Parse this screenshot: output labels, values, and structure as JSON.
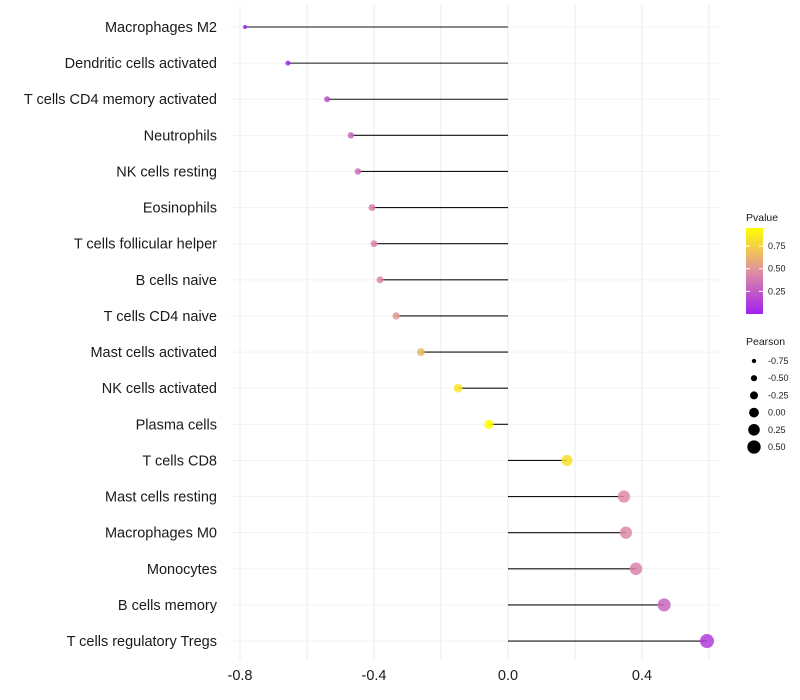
{
  "chart_data": {
    "type": "lollipop",
    "title": "",
    "xlabel": "",
    "ylabel": "",
    "xlim": [
      -0.82,
      0.62
    ],
    "x_ticks": [
      "-0.8",
      "-0.4",
      "0.0",
      "0.4"
    ],
    "x_tick_values": [
      -0.8,
      -0.4,
      0.0,
      0.4
    ],
    "grid": true,
    "categories": [
      "Macrophages M2",
      "Dendritic cells activated",
      "T cells CD4 memory activated",
      "Neutrophils",
      "NK cells resting",
      "Eosinophils",
      "T cells follicular helper",
      "B cells naive",
      "T cells CD4 naive",
      "Mast cells activated",
      "NK cells activated",
      "Plasma cells",
      "T cells CD8",
      "Mast cells resting",
      "Macrophages M0",
      "Monocytes",
      "B cells memory",
      "T cells regulatory  Tregs"
    ],
    "pearson": [
      -0.785,
      -0.657,
      -0.54,
      -0.469,
      -0.448,
      -0.406,
      -0.4,
      -0.382,
      -0.334,
      -0.26,
      -0.149,
      -0.057,
      0.176,
      0.346,
      0.352,
      0.382,
      0.466,
      0.594
    ],
    "pvalue": [
      0.0,
      0.03,
      0.2,
      0.3,
      0.33,
      0.4,
      0.42,
      0.45,
      0.52,
      0.65,
      0.85,
      0.95,
      0.82,
      0.45,
      0.45,
      0.42,
      0.3,
      0.12
    ],
    "legend": {
      "color_title": "Pvalue",
      "color_ticks": [
        "0.25",
        "0.50",
        "0.75"
      ],
      "color_tick_values": [
        0.25,
        0.5,
        0.75
      ],
      "color_low": "#a020f0",
      "color_mid": "#e090a0",
      "color_high": "#ffff00",
      "size_title": "Pearson",
      "size_labels": [
        "-0.75",
        "-0.50",
        "-0.25",
        "0.00",
        "0.25",
        "0.50"
      ],
      "size_values": [
        -0.75,
        -0.5,
        -0.25,
        0,
        0.25,
        0.5
      ],
      "placement": "right"
    }
  }
}
